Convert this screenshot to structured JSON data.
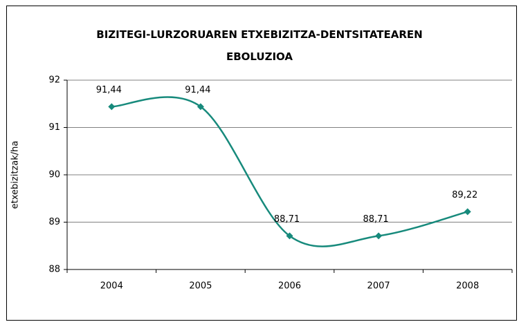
{
  "chart_data": {
    "type": "line",
    "title": "BIZITEGI-LURZORUAREN ETXEBIZITZA-DENTSITATEAREN EBOLUZIOA",
    "y_label": "etxebizitzak/ha",
    "categories": [
      "2004",
      "2005",
      "2006",
      "2007",
      "2008"
    ],
    "values": [
      91.44,
      91.44,
      88.71,
      88.71,
      89.22
    ],
    "value_labels": [
      "91,44",
      "91,44",
      "88,71",
      "88,71",
      "89,22"
    ],
    "color": "#178a7c",
    "smooth": true,
    "ylim": [
      88,
      92
    ],
    "yticks": [
      88,
      89,
      90,
      91,
      92
    ],
    "grid": true
  }
}
